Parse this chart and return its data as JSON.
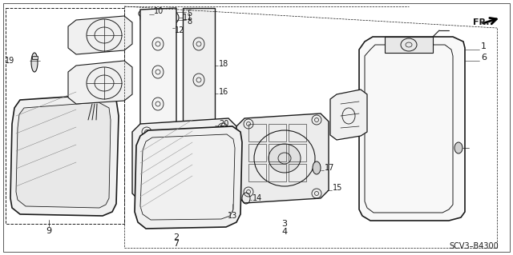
{
  "bg_color": "#ffffff",
  "line_color": "#1a1a1a",
  "diagram_code": "SCV3–B4300",
  "fig_w": 6.4,
  "fig_h": 3.19,
  "dpi": 100
}
